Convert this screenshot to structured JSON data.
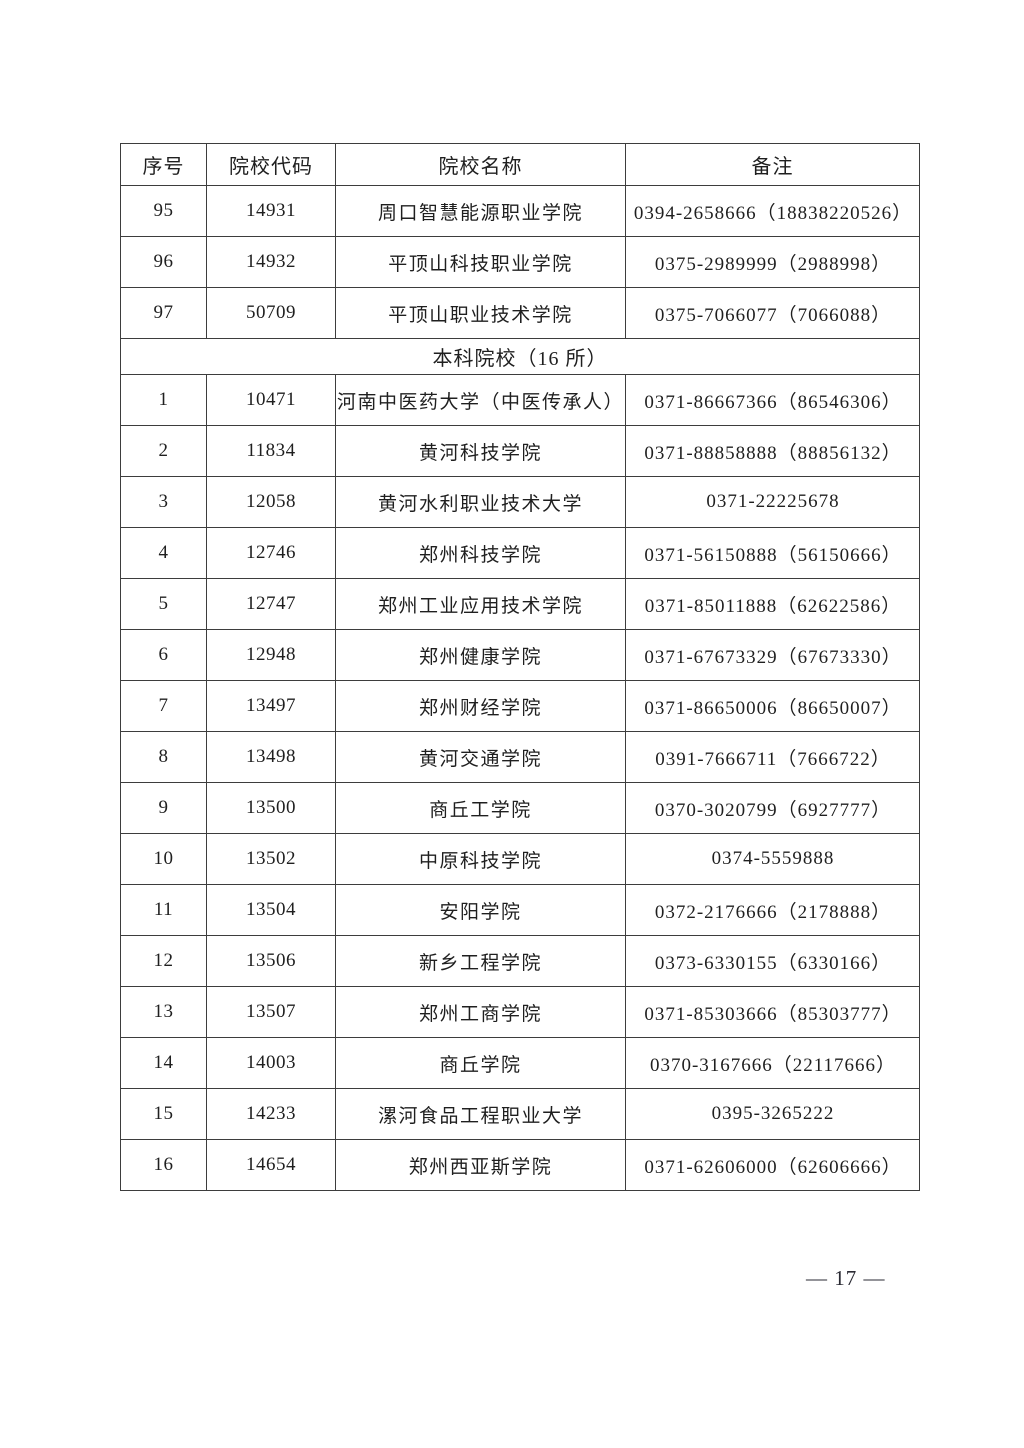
{
  "page": {
    "number_label": "— 17 —"
  },
  "table": {
    "columns": [
      "序号",
      "院校代码",
      "院校名称",
      "备注"
    ],
    "sections": [
      {
        "header": null,
        "rows": [
          {
            "no": "95",
            "code": "14931",
            "name": "周口智慧能源职业学院",
            "remark": "0394-2658666（18838220526）"
          },
          {
            "no": "96",
            "code": "14932",
            "name": "平顶山科技职业学院",
            "remark": "0375-2989999（2988998）"
          },
          {
            "no": "97",
            "code": "50709",
            "name": "平顶山职业技术学院",
            "remark": "0375-7066077（7066088）"
          }
        ]
      },
      {
        "header": "本科院校（16 所）",
        "rows": [
          {
            "no": "1",
            "code": "10471",
            "name": "河南中医药大学（中医传承人）",
            "remark": "0371-86667366（86546306）"
          },
          {
            "no": "2",
            "code": "11834",
            "name": "黄河科技学院",
            "remark": "0371-88858888（88856132）"
          },
          {
            "no": "3",
            "code": "12058",
            "name": "黄河水利职业技术大学",
            "remark": "0371-22225678"
          },
          {
            "no": "4",
            "code": "12746",
            "name": "郑州科技学院",
            "remark": "0371-56150888（56150666）"
          },
          {
            "no": "5",
            "code": "12747",
            "name": "郑州工业应用技术学院",
            "remark": "0371-85011888（62622586）"
          },
          {
            "no": "6",
            "code": "12948",
            "name": "郑州健康学院",
            "remark": "0371-67673329（67673330）"
          },
          {
            "no": "7",
            "code": "13497",
            "name": "郑州财经学院",
            "remark": "0371-86650006（86650007）"
          },
          {
            "no": "8",
            "code": "13498",
            "name": "黄河交通学院",
            "remark": "0391-7666711（7666722）"
          },
          {
            "no": "9",
            "code": "13500",
            "name": "商丘工学院",
            "remark": "0370-3020799（6927777）"
          },
          {
            "no": "10",
            "code": "13502",
            "name": "中原科技学院",
            "remark": "0374-5559888"
          },
          {
            "no": "11",
            "code": "13504",
            "name": "安阳学院",
            "remark": "0372-2176666（2178888）"
          },
          {
            "no": "12",
            "code": "13506",
            "name": "新乡工程学院",
            "remark": "0373-6330155（6330166）"
          },
          {
            "no": "13",
            "code": "13507",
            "name": "郑州工商学院",
            "remark": "0371-85303666（85303777）"
          },
          {
            "no": "14",
            "code": "14003",
            "name": "商丘学院",
            "remark": "0370-3167666（22117666）"
          },
          {
            "no": "15",
            "code": "14233",
            "name": "漯河食品工程职业大学",
            "remark": "0395-3265222"
          },
          {
            "no": "16",
            "code": "14654",
            "name": "郑州西亚斯学院",
            "remark": "0371-62606000（62606666）"
          }
        ]
      }
    ]
  }
}
